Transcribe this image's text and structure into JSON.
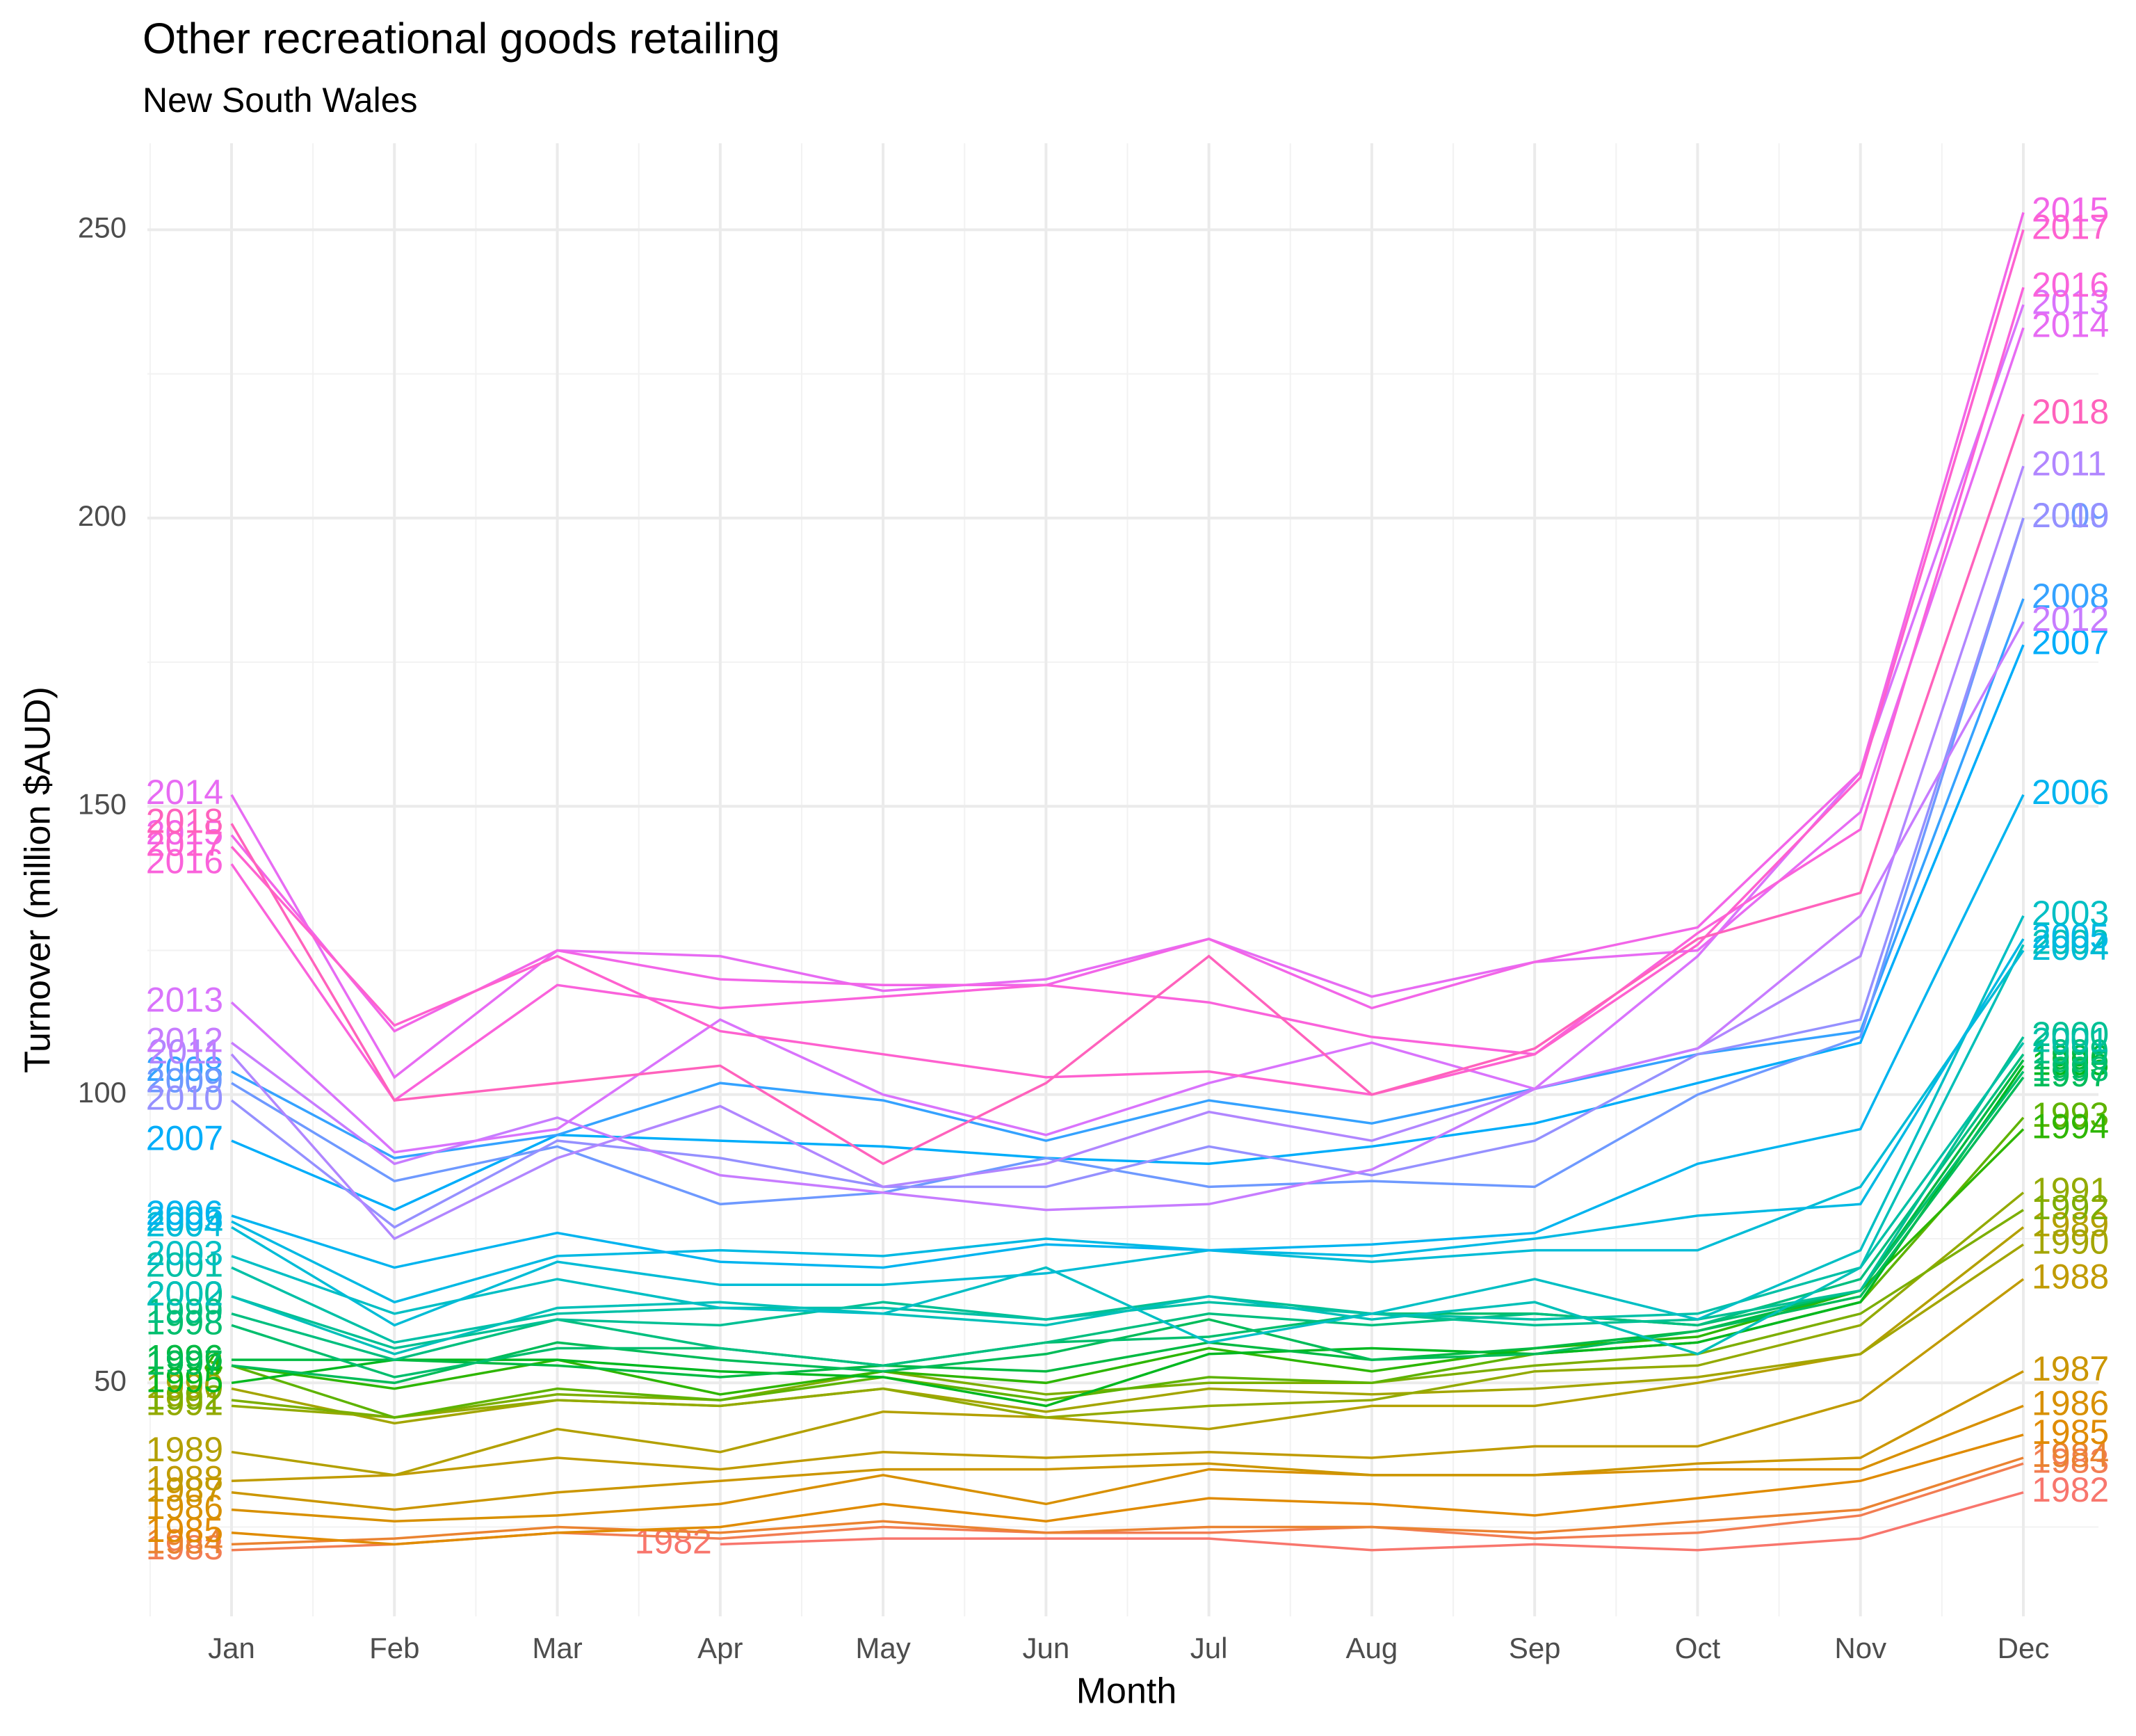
{
  "chart_data": {
    "type": "line",
    "title": "Other recreational goods retailing",
    "subtitle": "New South Wales",
    "x_label": "Month",
    "y_label": "Turnover (million $AUD)",
    "categories": [
      "Jan",
      "Feb",
      "Mar",
      "Apr",
      "May",
      "Jun",
      "Jul",
      "Aug",
      "Sep",
      "Oct",
      "Nov",
      "Dec"
    ],
    "ylim": [
      9.5,
      265
    ],
    "yticks": [
      50,
      100,
      150,
      200,
      250
    ],
    "grid": true,
    "series": [
      {
        "name": "1982",
        "color": "#F8766D",
        "values": [
          null,
          null,
          null,
          22,
          23,
          23,
          23,
          21,
          22,
          21,
          23,
          31
        ]
      },
      {
        "name": "1983",
        "color": "#F27D52",
        "values": [
          21,
          22,
          24,
          23,
          25,
          24,
          24,
          25,
          23,
          24,
          27,
          36
        ]
      },
      {
        "name": "1984",
        "color": "#EA8331",
        "values": [
          22,
          23,
          25,
          24,
          26,
          24,
          25,
          25,
          24,
          26,
          28,
          37
        ]
      },
      {
        "name": "1985",
        "color": "#E08B00",
        "values": [
          24,
          22,
          24,
          25,
          29,
          26,
          30,
          29,
          27,
          30,
          33,
          41
        ]
      },
      {
        "name": "1986",
        "color": "#D89000",
        "values": [
          28,
          26,
          27,
          29,
          34,
          29,
          35,
          34,
          34,
          35,
          35,
          46
        ]
      },
      {
        "name": "1987",
        "color": "#CB9600",
        "values": [
          31,
          28,
          31,
          33,
          35,
          35,
          36,
          34,
          34,
          36,
          37,
          52
        ]
      },
      {
        "name": "1988",
        "color": "#C09B00",
        "values": [
          33,
          34,
          37,
          35,
          38,
          37,
          38,
          37,
          39,
          39,
          47,
          68
        ]
      },
      {
        "name": "1989",
        "color": "#B3A000",
        "values": [
          38,
          34,
          42,
          38,
          45,
          44,
          42,
          46,
          46,
          50,
          55,
          77
        ]
      },
      {
        "name": "1990",
        "color": "#A3A500",
        "values": [
          49,
          43,
          47,
          46,
          49,
          45,
          49,
          48,
          49,
          51,
          55,
          74
        ]
      },
      {
        "name": "1991",
        "color": "#93AA00",
        "values": [
          46,
          44,
          47,
          46,
          49,
          44,
          46,
          47,
          52,
          53,
          60,
          83
        ]
      },
      {
        "name": "1992",
        "color": "#7CAE00",
        "values": [
          47,
          44,
          48,
          47,
          52,
          48,
          50,
          50,
          53,
          55,
          62,
          80
        ]
      },
      {
        "name": "1993",
        "color": "#5EB300",
        "values": [
          53,
          44,
          49,
          47,
          51,
          47,
          51,
          50,
          55,
          57,
          64,
          96
        ]
      },
      {
        "name": "1994",
        "color": "#2DB600",
        "values": [
          53,
          49,
          54,
          48,
          52,
          50,
          56,
          52,
          56,
          58,
          66,
          94
        ]
      },
      {
        "name": "1995",
        "color": "#00B81F",
        "values": [
          50,
          54,
          54,
          52,
          51,
          46,
          55,
          56,
          55,
          57,
          64,
          105
        ]
      },
      {
        "name": "1996",
        "color": "#00BA42",
        "values": [
          54,
          54,
          53,
          51,
          53,
          52,
          57,
          54,
          56,
          59,
          66,
          106
        ]
      },
      {
        "name": "1997",
        "color": "#00BC59",
        "values": [
          53,
          50,
          57,
          54,
          52,
          55,
          61,
          54,
          55,
          59,
          65,
          103
        ]
      },
      {
        "name": "1998",
        "color": "#00BE6D",
        "values": [
          60,
          51,
          56,
          56,
          53,
          57,
          58,
          62,
          62,
          60,
          66,
          104
        ]
      },
      {
        "name": "1999",
        "color": "#00BF7F",
        "values": [
          62,
          54,
          61,
          56,
          53,
          57,
          62,
          60,
          62,
          60,
          68,
          107
        ]
      },
      {
        "name": "2000",
        "color": "#00C094",
        "values": [
          65,
          56,
          61,
          60,
          64,
          61,
          65,
          62,
          60,
          61,
          66,
          110
        ]
      },
      {
        "name": "2001",
        "color": "#00C0A6",
        "values": [
          70,
          57,
          62,
          63,
          63,
          61,
          64,
          62,
          61,
          62,
          70,
          109
        ]
      },
      {
        "name": "2002",
        "color": "#00C0B8",
        "values": [
          65,
          55,
          63,
          64,
          62,
          60,
          65,
          61,
          64,
          55,
          70,
          126
        ]
      },
      {
        "name": "2003",
        "color": "#00BFC4",
        "values": [
          72,
          62,
          68,
          63,
          62,
          70,
          57,
          62,
          68,
          61,
          73,
          131
        ]
      },
      {
        "name": "2004",
        "color": "#00BCD6",
        "values": [
          77,
          60,
          71,
          67,
          67,
          69,
          73,
          71,
          73,
          73,
          84,
          125
        ]
      },
      {
        "name": "2005",
        "color": "#00B9E3",
        "values": [
          78,
          64,
          72,
          73,
          72,
          75,
          73,
          72,
          75,
          79,
          81,
          127
        ]
      },
      {
        "name": "2006",
        "color": "#00B4EF",
        "values": [
          79,
          70,
          76,
          71,
          70,
          74,
          73,
          74,
          76,
          88,
          94,
          152
        ]
      },
      {
        "name": "2007",
        "color": "#00ADFA",
        "values": [
          92,
          80,
          93,
          92,
          91,
          89,
          88,
          91,
          95,
          102,
          109,
          178
        ]
      },
      {
        "name": "2008",
        "color": "#35A2FF",
        "values": [
          104,
          89,
          93,
          102,
          99,
          92,
          99,
          95,
          101,
          107,
          111,
          186
        ]
      },
      {
        "name": "2009",
        "color": "#6E99FF",
        "values": [
          102,
          85,
          91,
          81,
          83,
          89,
          84,
          85,
          84,
          100,
          110,
          200
        ]
      },
      {
        "name": "2010",
        "color": "#9590FF",
        "values": [
          99,
          77,
          92,
          89,
          84,
          84,
          91,
          86,
          92,
          107,
          113,
          200
        ]
      },
      {
        "name": "2011",
        "color": "#B186FF",
        "values": [
          107,
          75,
          89,
          98,
          84,
          88,
          97,
          92,
          101,
          108,
          124,
          209
        ]
      },
      {
        "name": "2012",
        "color": "#C77CFF",
        "values": [
          109,
          88,
          96,
          86,
          83,
          80,
          81,
          87,
          101,
          108,
          131,
          182
        ]
      },
      {
        "name": "2013",
        "color": "#D973FC",
        "values": [
          116,
          90,
          94,
          113,
          100,
          93,
          102,
          109,
          101,
          124,
          156,
          237
        ]
      },
      {
        "name": "2014",
        "color": "#E76BF3",
        "values": [
          152,
          103,
          125,
          124,
          118,
          120,
          127,
          117,
          123,
          125,
          149,
          233
        ]
      },
      {
        "name": "2015",
        "color": "#F265E8",
        "values": [
          145,
          111,
          125,
          120,
          119,
          119,
          127,
          115,
          123,
          129,
          156,
          253
        ]
      },
      {
        "name": "2016",
        "color": "#FA62DB",
        "values": [
          140,
          99,
          119,
          115,
          117,
          119,
          116,
          110,
          107,
          128,
          146,
          240
        ]
      },
      {
        "name": "2017",
        "color": "#FE61CF",
        "values": [
          143,
          112,
          124,
          111,
          107,
          103,
          104,
          100,
          107,
          126,
          155,
          250
        ]
      },
      {
        "name": "2018",
        "color": "#FF62BC",
        "values": [
          147,
          99,
          102,
          105,
          88,
          102,
          124,
          100,
          108,
          127,
          135,
          218
        ]
      }
    ]
  }
}
